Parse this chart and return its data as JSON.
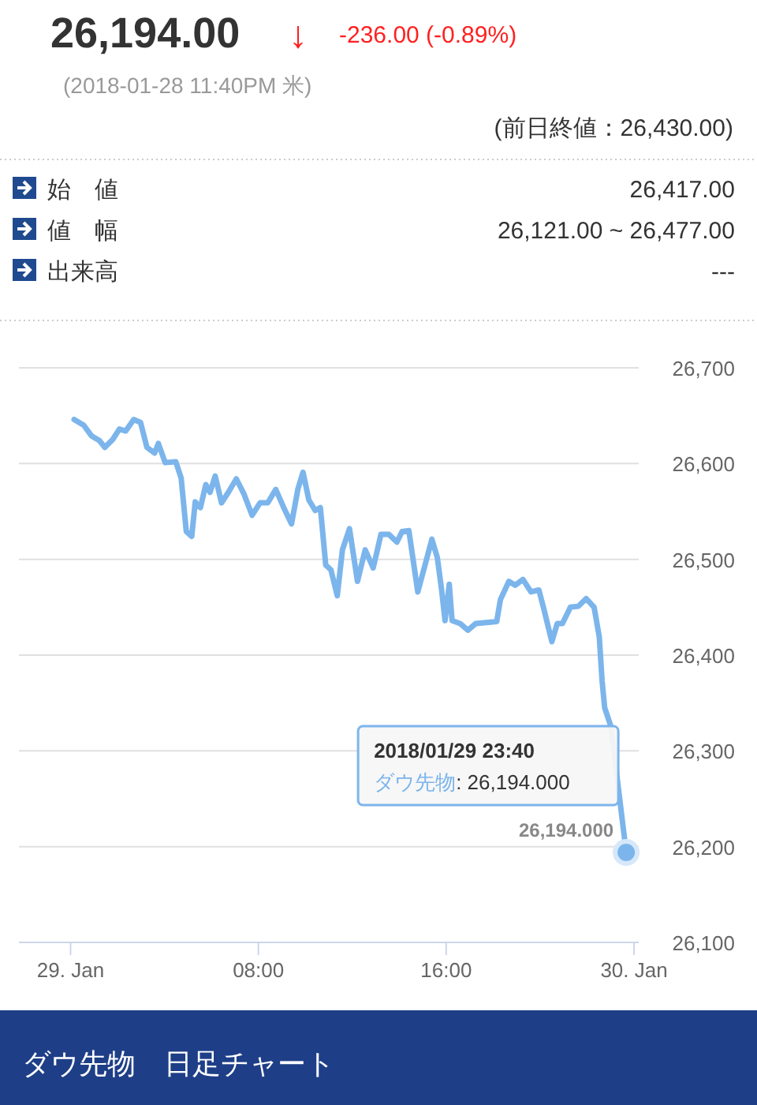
{
  "chart_data": {
    "type": "line",
    "title": "ダウ先物　日足チャート",
    "annotations": [
      "26,194.00",
      "↓",
      "-236.00 (-0.89%)",
      "(2018-01-28 11:40PM 米)",
      "(前日終値：26,430.00)",
      "始　値",
      "26,417.00",
      "値　幅",
      "26,121.00 ~ 26,477.00",
      "出来高",
      "---",
      "2018/01/29 23:40",
      ": 26,194.000",
      {
        "text": "26,194.000",
        "x": 23.667,
        "y": 26194
      }
    ],
    "xlim": [
      -2.2,
      24.2
    ],
    "xticks": [
      {
        "value": 0,
        "label": "29. Jan"
      },
      {
        "value": 8,
        "label": "08:00"
      },
      {
        "value": 16,
        "label": "16:00"
      },
      {
        "value": 24,
        "label": "30. Jan"
      }
    ],
    "ylim": [
      26100,
      26700
    ],
    "yticks": [
      {
        "value": 26100,
        "label": "26,100"
      },
      {
        "value": 26200,
        "label": "26,200"
      },
      {
        "value": 26300,
        "label": "26,300"
      },
      {
        "value": 26400,
        "label": "26,400"
      },
      {
        "value": 26500,
        "label": "26,500"
      },
      {
        "value": 26600,
        "label": "26,600"
      },
      {
        "value": 26700,
        "label": "26,700"
      }
    ],
    "grid": "y",
    "line_style": "solid",
    "series": [
      {
        "name": "ダウ先物",
        "color": "#7cb5ec",
        "marker": "none",
        "x": [
          0.15,
          0.56,
          0.89,
          1.23,
          1.46,
          1.79,
          2.08,
          2.35,
          2.69,
          2.98,
          3.25,
          3.58,
          3.74,
          4.03,
          4.48,
          4.71,
          4.93,
          5.16,
          5.31,
          5.53,
          5.76,
          5.94,
          6.16,
          6.43,
          6.72,
          7.06,
          7.39,
          7.73,
          8.07,
          8.4,
          8.74,
          9.08,
          9.41,
          9.68,
          9.9,
          10.15,
          10.42,
          10.64,
          10.87,
          11.09,
          11.36,
          11.58,
          11.88,
          12.22,
          12.55,
          12.89,
          13.22,
          13.56,
          13.9,
          14.12,
          14.41,
          14.79,
          15.13,
          15.39,
          15.62,
          15.8,
          15.95,
          16.13,
          16.25,
          16.59,
          16.92,
          17.26,
          18.15,
          18.31,
          18.67,
          18.94,
          19.27,
          19.61,
          19.95,
          20.17,
          20.39,
          20.5,
          20.73,
          20.95,
          21.29,
          21.63,
          21.96,
          22.3,
          22.52,
          22.64,
          22.75,
          23.01,
          23.667
        ],
        "values": [
          26646,
          26640,
          26629,
          26624,
          26617,
          26625,
          26636,
          26634,
          26646,
          26643,
          26617,
          26611,
          26621,
          26601,
          26602,
          26585,
          26529,
          26524,
          26560,
          26554,
          26578,
          26570,
          26587,
          26559,
          26570,
          26584,
          26568,
          26546,
          26559,
          26559,
          26573,
          26554,
          26537,
          26573,
          26591,
          26562,
          26551,
          26554,
          26494,
          26489,
          26462,
          26510,
          26532,
          26477,
          26510,
          26491,
          26526,
          26526,
          26518,
          26529,
          26530,
          26466,
          26497,
          26521,
          26502,
          26469,
          26436,
          26474,
          26436,
          26433,
          26426,
          26433,
          26435,
          26458,
          26477,
          26473,
          26479,
          26466,
          26468,
          26447,
          26425,
          26414,
          26433,
          26433,
          26450,
          26451,
          26459,
          26450,
          26419,
          26373,
          26345,
          26326,
          26194
        ]
      },
      {
        "type": "scatter",
        "color": "#7cb5ec",
        "x": [
          23.667
        ],
        "values": [
          26194
        ]
      }
    ]
  }
}
